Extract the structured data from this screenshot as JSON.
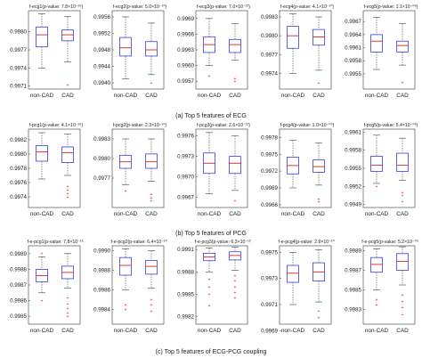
{
  "rows": [
    {
      "caption": "(a) Top 5 features of ECG",
      "panels": [
        {
          "title": "f-ecg1(p-value: 7.8×10⁻¹⁶)",
          "ylim": [
            0.99705,
            0.99835
          ],
          "ticks": [
            "0.9980",
            "0.9977",
            "0.9974",
            "0.9971"
          ],
          "tick_values": [
            0.998,
            0.9977,
            0.9974,
            0.9971
          ],
          "boxes": [
            {
              "min": 0.9974,
              "q1": 0.99775,
              "median": 0.99795,
              "q3": 0.99808,
              "max": 0.9983,
              "outliers": []
            },
            {
              "min": 0.9975,
              "q1": 0.99785,
              "median": 0.99795,
              "q3": 0.99803,
              "max": 0.99825,
              "outliers": [
                0.99712
              ]
            }
          ]
        },
        {
          "title": "f-ecg2(p-value: 5.0×10⁻¹⁰)",
          "ylim": [
            0.99385,
            0.99575
          ],
          "ticks": [
            "0.9956",
            "0.9952",
            "0.9948",
            "0.9944",
            "0.9940"
          ],
          "tick_values": [
            0.9956,
            0.9952,
            0.9948,
            0.9944,
            0.994
          ],
          "boxes": [
            {
              "min": 0.9941,
              "q1": 0.99465,
              "median": 0.99485,
              "q3": 0.9951,
              "max": 0.9956,
              "outliers": []
            },
            {
              "min": 0.9942,
              "q1": 0.99465,
              "median": 0.9948,
              "q3": 0.995,
              "max": 0.99545,
              "outliers": [
                0.994
              ]
            }
          ]
        },
        {
          "title": "f-ecg3(p-value: 7.0×10⁻¹²)",
          "ylim": [
            0.99555,
            0.99705
          ],
          "ticks": [
            "0.9969",
            "0.9966",
            "0.9963",
            "0.9960",
            "0.9957"
          ],
          "tick_values": [
            0.9969,
            0.9966,
            0.9963,
            0.996,
            0.9957
          ],
          "boxes": [
            {
              "min": 0.996,
              "q1": 0.99625,
              "median": 0.9964,
              "q3": 0.99655,
              "max": 0.9969,
              "outliers": [
                0.9958
              ]
            },
            {
              "min": 0.9961,
              "q1": 0.99625,
              "median": 0.9964,
              "q3": 0.9965,
              "max": 0.9968,
              "outliers": [
                0.99575,
                0.9957
              ]
            }
          ]
        },
        {
          "title": "f-ecg4(p-value: 4.1×10⁻¹⁰)",
          "ylim": [
            0.99715,
            0.9984
          ],
          "ticks": [
            "0.9983",
            "0.9980",
            "0.9977",
            "0.9974"
          ],
          "tick_values": [
            0.9983,
            0.998,
            0.9977,
            0.9974
          ],
          "boxes": [
            {
              "min": 0.9974,
              "q1": 0.9978,
              "median": 0.998,
              "q3": 0.99815,
              "max": 0.99835,
              "outliers": []
            },
            {
              "min": 0.99745,
              "q1": 0.99785,
              "median": 0.99798,
              "q3": 0.9981,
              "max": 0.9983,
              "outliers": [
                0.99725
              ]
            }
          ]
        },
        {
          "title": "f-ecg5(p-value: 1.1×10⁻⁰⁹)",
          "ylim": [
            0.99515,
            0.99695
          ],
          "ticks": [
            "0.9967",
            "0.9964",
            "0.9961",
            "0.9958",
            "0.9955"
          ],
          "tick_values": [
            0.9967,
            0.9964,
            0.9961,
            0.9958,
            0.9955
          ],
          "boxes": [
            {
              "min": 0.9956,
              "q1": 0.996,
              "median": 0.99625,
              "q3": 0.9964,
              "max": 0.9968,
              "outliers": []
            },
            {
              "min": 0.9957,
              "q1": 0.996,
              "median": 0.99615,
              "q3": 0.99625,
              "max": 0.99665,
              "outliers": [
                0.9953
              ]
            }
          ]
        }
      ]
    },
    {
      "caption": "(b) Top 5 features of PCG",
      "panels": [
        {
          "title": "f-pcg1(p-value: 4.1×10⁻¹⁶)",
          "ylim": [
            0.99725,
            0.99835
          ],
          "ticks": [
            "0.9982",
            "0.9980",
            "0.9978",
            "0.9976",
            "0.9974"
          ],
          "tick_values": [
            0.9982,
            0.998,
            0.9978,
            0.9976,
            0.9974
          ],
          "boxes": [
            {
              "min": 0.99765,
              "q1": 0.9979,
              "median": 0.99803,
              "q3": 0.99812,
              "max": 0.9983,
              "outliers": []
            },
            {
              "min": 0.9977,
              "q1": 0.99788,
              "median": 0.99802,
              "q3": 0.9981,
              "max": 0.99828,
              "outliers": [
                0.99755,
                0.9975,
                0.99745,
                0.9974
              ]
            }
          ]
        },
        {
          "title": "f-pcg2(p-value: 2.3×10⁻¹⁰)",
          "ylim": [
            0.99725,
            0.99845
          ],
          "ticks": [
            "0.9983",
            "0.9980",
            "0.9977"
          ],
          "tick_values": [
            0.9983,
            0.998,
            0.9977
          ],
          "boxes": [
            {
              "min": 0.9976,
              "q1": 0.99785,
              "median": 0.99795,
              "q3": 0.99805,
              "max": 0.9983,
              "outliers": [
                0.9975
              ]
            },
            {
              "min": 0.99765,
              "q1": 0.99785,
              "median": 0.99795,
              "q3": 0.99807,
              "max": 0.9983,
              "outliers": [
                0.99745,
                0.9974,
                0.99735
              ]
            }
          ]
        },
        {
          "title": "f-pcg3(p-value: 2.6×10⁻¹²)",
          "ylim": [
            0.99655,
            0.9977
          ],
          "ticks": [
            "0.9976",
            "0.9973",
            "0.9970",
            "0.9967"
          ],
          "tick_values": [
            0.9976,
            0.9973,
            0.997,
            0.9967
          ],
          "boxes": [
            {
              "min": 0.99675,
              "q1": 0.99705,
              "median": 0.9972,
              "q3": 0.99735,
              "max": 0.99765,
              "outliers": []
            },
            {
              "min": 0.9968,
              "q1": 0.99705,
              "median": 0.9972,
              "q3": 0.9973,
              "max": 0.9976,
              "outliers": [
                0.99665
              ]
            }
          ]
        },
        {
          "title": "f-pcg4(p-value: 1.0×10⁻⁰⁹)",
          "ylim": [
            0.99655,
            0.99795
          ],
          "ticks": [
            "0.9978",
            "0.9975",
            "0.9972",
            "0.9969",
            "0.9966"
          ],
          "tick_values": [
            0.9978,
            0.9975,
            0.9972,
            0.9969,
            0.9966
          ],
          "boxes": [
            {
              "min": 0.9969,
              "q1": 0.99715,
              "median": 0.9973,
              "q3": 0.99745,
              "max": 0.99775,
              "outliers": []
            },
            {
              "min": 0.99695,
              "q1": 0.99718,
              "median": 0.99728,
              "q3": 0.9974,
              "max": 0.9977,
              "outliers": [
                0.9967,
                0.99665
              ]
            }
          ]
        },
        {
          "title": "f-pcg5(p-value: 5.4×10⁻⁰⁸)",
          "ylim": [
            0.99485,
            0.99615
          ],
          "ticks": [
            "0.9961",
            "0.9958",
            "0.9955",
            "0.9952",
            "0.9949"
          ],
          "tick_values": [
            0.9961,
            0.9958,
            0.9955,
            0.9952,
            0.9949
          ],
          "boxes": [
            {
              "min": 0.99525,
              "q1": 0.99545,
              "median": 0.99555,
              "q3": 0.9957,
              "max": 0.99605,
              "outliers": [
                0.9952
              ]
            },
            {
              "min": 0.9953,
              "q1": 0.99545,
              "median": 0.99555,
              "q3": 0.99575,
              "max": 0.996,
              "outliers": [
                0.9951,
                0.99505,
                0.99495
              ]
            }
          ]
        }
      ]
    },
    {
      "caption": "(c) Top 5 features of ECG-PCG coupling",
      "panels": [
        {
          "title": "f-e-pcg1(p-value: 7.8×10⁻¹⁶)",
          "ylim": [
            0.99845,
            0.99895
          ],
          "ticks": [
            "0.9989",
            "0.9988",
            "0.9987",
            "0.9986",
            "0.9985"
          ],
          "tick_values": [
            0.9989,
            0.9988,
            0.9987,
            0.9986,
            0.9985
          ],
          "boxes": [
            {
              "min": 0.99865,
              "q1": 0.99872,
              "median": 0.99876,
              "q3": 0.9988,
              "max": 0.99888,
              "outliers": [
                0.9989,
                0.9986
              ]
            },
            {
              "min": 0.99868,
              "q1": 0.99874,
              "median": 0.99878,
              "q3": 0.99882,
              "max": 0.9989,
              "outliers": [
                0.99862,
                0.99858,
                0.99855,
                0.99852,
                0.9985
              ]
            }
          ]
        },
        {
          "title": "f-e-pcg2(p-value: 6.4×10⁻¹⁰)",
          "ylim": [
            0.99825,
            0.99905
          ],
          "ticks": [
            "0.9990",
            "0.9988",
            "0.9986",
            "0.9984"
          ],
          "tick_values": [
            0.999,
            0.9988,
            0.9986,
            0.9984
          ],
          "boxes": [
            {
              "min": 0.9986,
              "q1": 0.99875,
              "median": 0.99885,
              "q3": 0.99893,
              "max": 0.99902,
              "outliers": [
                0.99845,
                0.9984
              ]
            },
            {
              "min": 0.99862,
              "q1": 0.99876,
              "median": 0.99884,
              "q3": 0.9989,
              "max": 0.999,
              "outliers": [
                0.9985,
                0.99845,
                0.99838
              ]
            }
          ]
        },
        {
          "title": "f-e-pcg3(p-value: 6.3×10⁻¹²)",
          "ylim": [
            0.9981,
            0.99915
          ],
          "ticks": [
            "0.9991",
            "0.9988",
            "0.9985",
            "0.9982"
          ],
          "tick_values": [
            0.9991,
            0.9988,
            0.9985,
            0.9982
          ],
          "boxes": [
            {
              "min": 0.9988,
              "q1": 0.99895,
              "median": 0.999,
              "q3": 0.99905,
              "max": 0.99912,
              "outliers": [
                0.9987,
                0.9986,
                0.9985,
                0.99835
              ]
            },
            {
              "min": 0.99882,
              "q1": 0.99896,
              "median": 0.99902,
              "q3": 0.99907,
              "max": 0.99913,
              "outliers": [
                0.99875,
                0.99868,
                0.9986,
                0.99852,
                0.99845
              ]
            }
          ]
        },
        {
          "title": "f-e-pcg4(p-value: 2.9×10⁻¹⁰)",
          "ylim": [
            0.99695,
            0.99755
          ],
          "ticks": [
            "0.9975",
            "0.9973",
            "0.9971",
            "0.9969"
          ],
          "tick_values": [
            0.9975,
            0.9973,
            0.9971,
            0.9969
          ],
          "boxes": [
            {
              "min": 0.9971,
              "q1": 0.99727,
              "median": 0.99734,
              "q3": 0.9974,
              "max": 0.9975,
              "outliers": []
            },
            {
              "min": 0.99712,
              "q1": 0.99728,
              "median": 0.99735,
              "q3": 0.99742,
              "max": 0.99752,
              "outliers": [
                0.99705,
                0.997
              ]
            }
          ]
        },
        {
          "title": "f-e-pcg5(p-value: 5.2×10⁻⁰⁹)",
          "ylim": [
            0.99815,
            0.99895
          ],
          "ticks": [
            "0.9989",
            "0.9987",
            "0.9985",
            "0.9983"
          ],
          "tick_values": [
            0.9989,
            0.9987,
            0.9985,
            0.9983
          ],
          "boxes": [
            {
              "min": 0.9985,
              "q1": 0.99868,
              "median": 0.99876,
              "q3": 0.99883,
              "max": 0.99892,
              "outliers": [
                0.9984,
                0.99835
              ]
            },
            {
              "min": 0.99855,
              "q1": 0.9987,
              "median": 0.99879,
              "q3": 0.99887,
              "max": 0.99894,
              "outliers": [
                0.99845,
                0.99838,
                0.99832,
                0.99825
              ]
            }
          ]
        }
      ]
    }
  ],
  "categories": [
    "non-CAD",
    "CAD"
  ],
  "colors": {
    "box": "#3b3bdf",
    "median": "#e02020",
    "whisker": "#444444",
    "outlier": "#e02020",
    "axis": "#555555"
  },
  "chart_data": [
    {
      "type": "boxplot",
      "caption": "(a) Top 5 features of ECG",
      "categories": [
        "non-CAD",
        "CAD"
      ],
      "series": [
        {
          "name": "f-ecg1",
          "p_value": "7.8×10⁻¹⁶",
          "medians": [
            0.99795,
            0.99795
          ]
        },
        {
          "name": "f-ecg2",
          "p_value": "5.0×10⁻¹⁰",
          "medians": [
            0.99485,
            0.9948
          ]
        },
        {
          "name": "f-ecg3",
          "p_value": "7.0×10⁻¹²",
          "medians": [
            0.9964,
            0.9964
          ]
        },
        {
          "name": "f-ecg4",
          "p_value": "4.1×10⁻¹⁰",
          "medians": [
            0.998,
            0.99798
          ]
        },
        {
          "name": "f-ecg5",
          "p_value": "1.1×10⁻⁰⁹",
          "medians": [
            0.99625,
            0.99615
          ]
        }
      ]
    },
    {
      "type": "boxplot",
      "caption": "(b) Top 5 features of PCG",
      "categories": [
        "non-CAD",
        "CAD"
      ],
      "series": [
        {
          "name": "f-pcg1",
          "p_value": "4.1×10⁻¹⁶",
          "medians": [
            0.99803,
            0.99802
          ]
        },
        {
          "name": "f-pcg2",
          "p_value": "2.3×10⁻¹⁰",
          "medians": [
            0.99795,
            0.99795
          ]
        },
        {
          "name": "f-pcg3",
          "p_value": "2.6×10⁻¹²",
          "medians": [
            0.9972,
            0.9972
          ]
        },
        {
          "name": "f-pcg4",
          "p_value": "1.0×10⁻⁰⁹",
          "medians": [
            0.9973,
            0.99728
          ]
        },
        {
          "name": "f-pcg5",
          "p_value": "5.4×10⁻⁰⁸",
          "medians": [
            0.99555,
            0.99555
          ]
        }
      ]
    },
    {
      "type": "boxplot",
      "caption": "(c) Top 5 features of ECG-PCG coupling",
      "categories": [
        "non-CAD",
        "CAD"
      ],
      "series": [
        {
          "name": "f-e-pcg1",
          "p_value": "7.8×10⁻¹⁶",
          "medians": [
            0.99876,
            0.99878
          ]
        },
        {
          "name": "f-e-pcg2",
          "p_value": "6.4×10⁻¹⁰",
          "medians": [
            0.99885,
            0.99884
          ]
        },
        {
          "name": "f-e-pcg3",
          "p_value": "6.3×10⁻¹²",
          "medians": [
            0.999,
            0.99902
          ]
        },
        {
          "name": "f-e-pcg4",
          "p_value": "2.9×10⁻¹⁰",
          "medians": [
            0.99734,
            0.99735
          ]
        },
        {
          "name": "f-e-pcg5",
          "p_value": "5.2×10⁻⁰⁹",
          "medians": [
            0.99876,
            0.99879
          ]
        }
      ]
    }
  ]
}
